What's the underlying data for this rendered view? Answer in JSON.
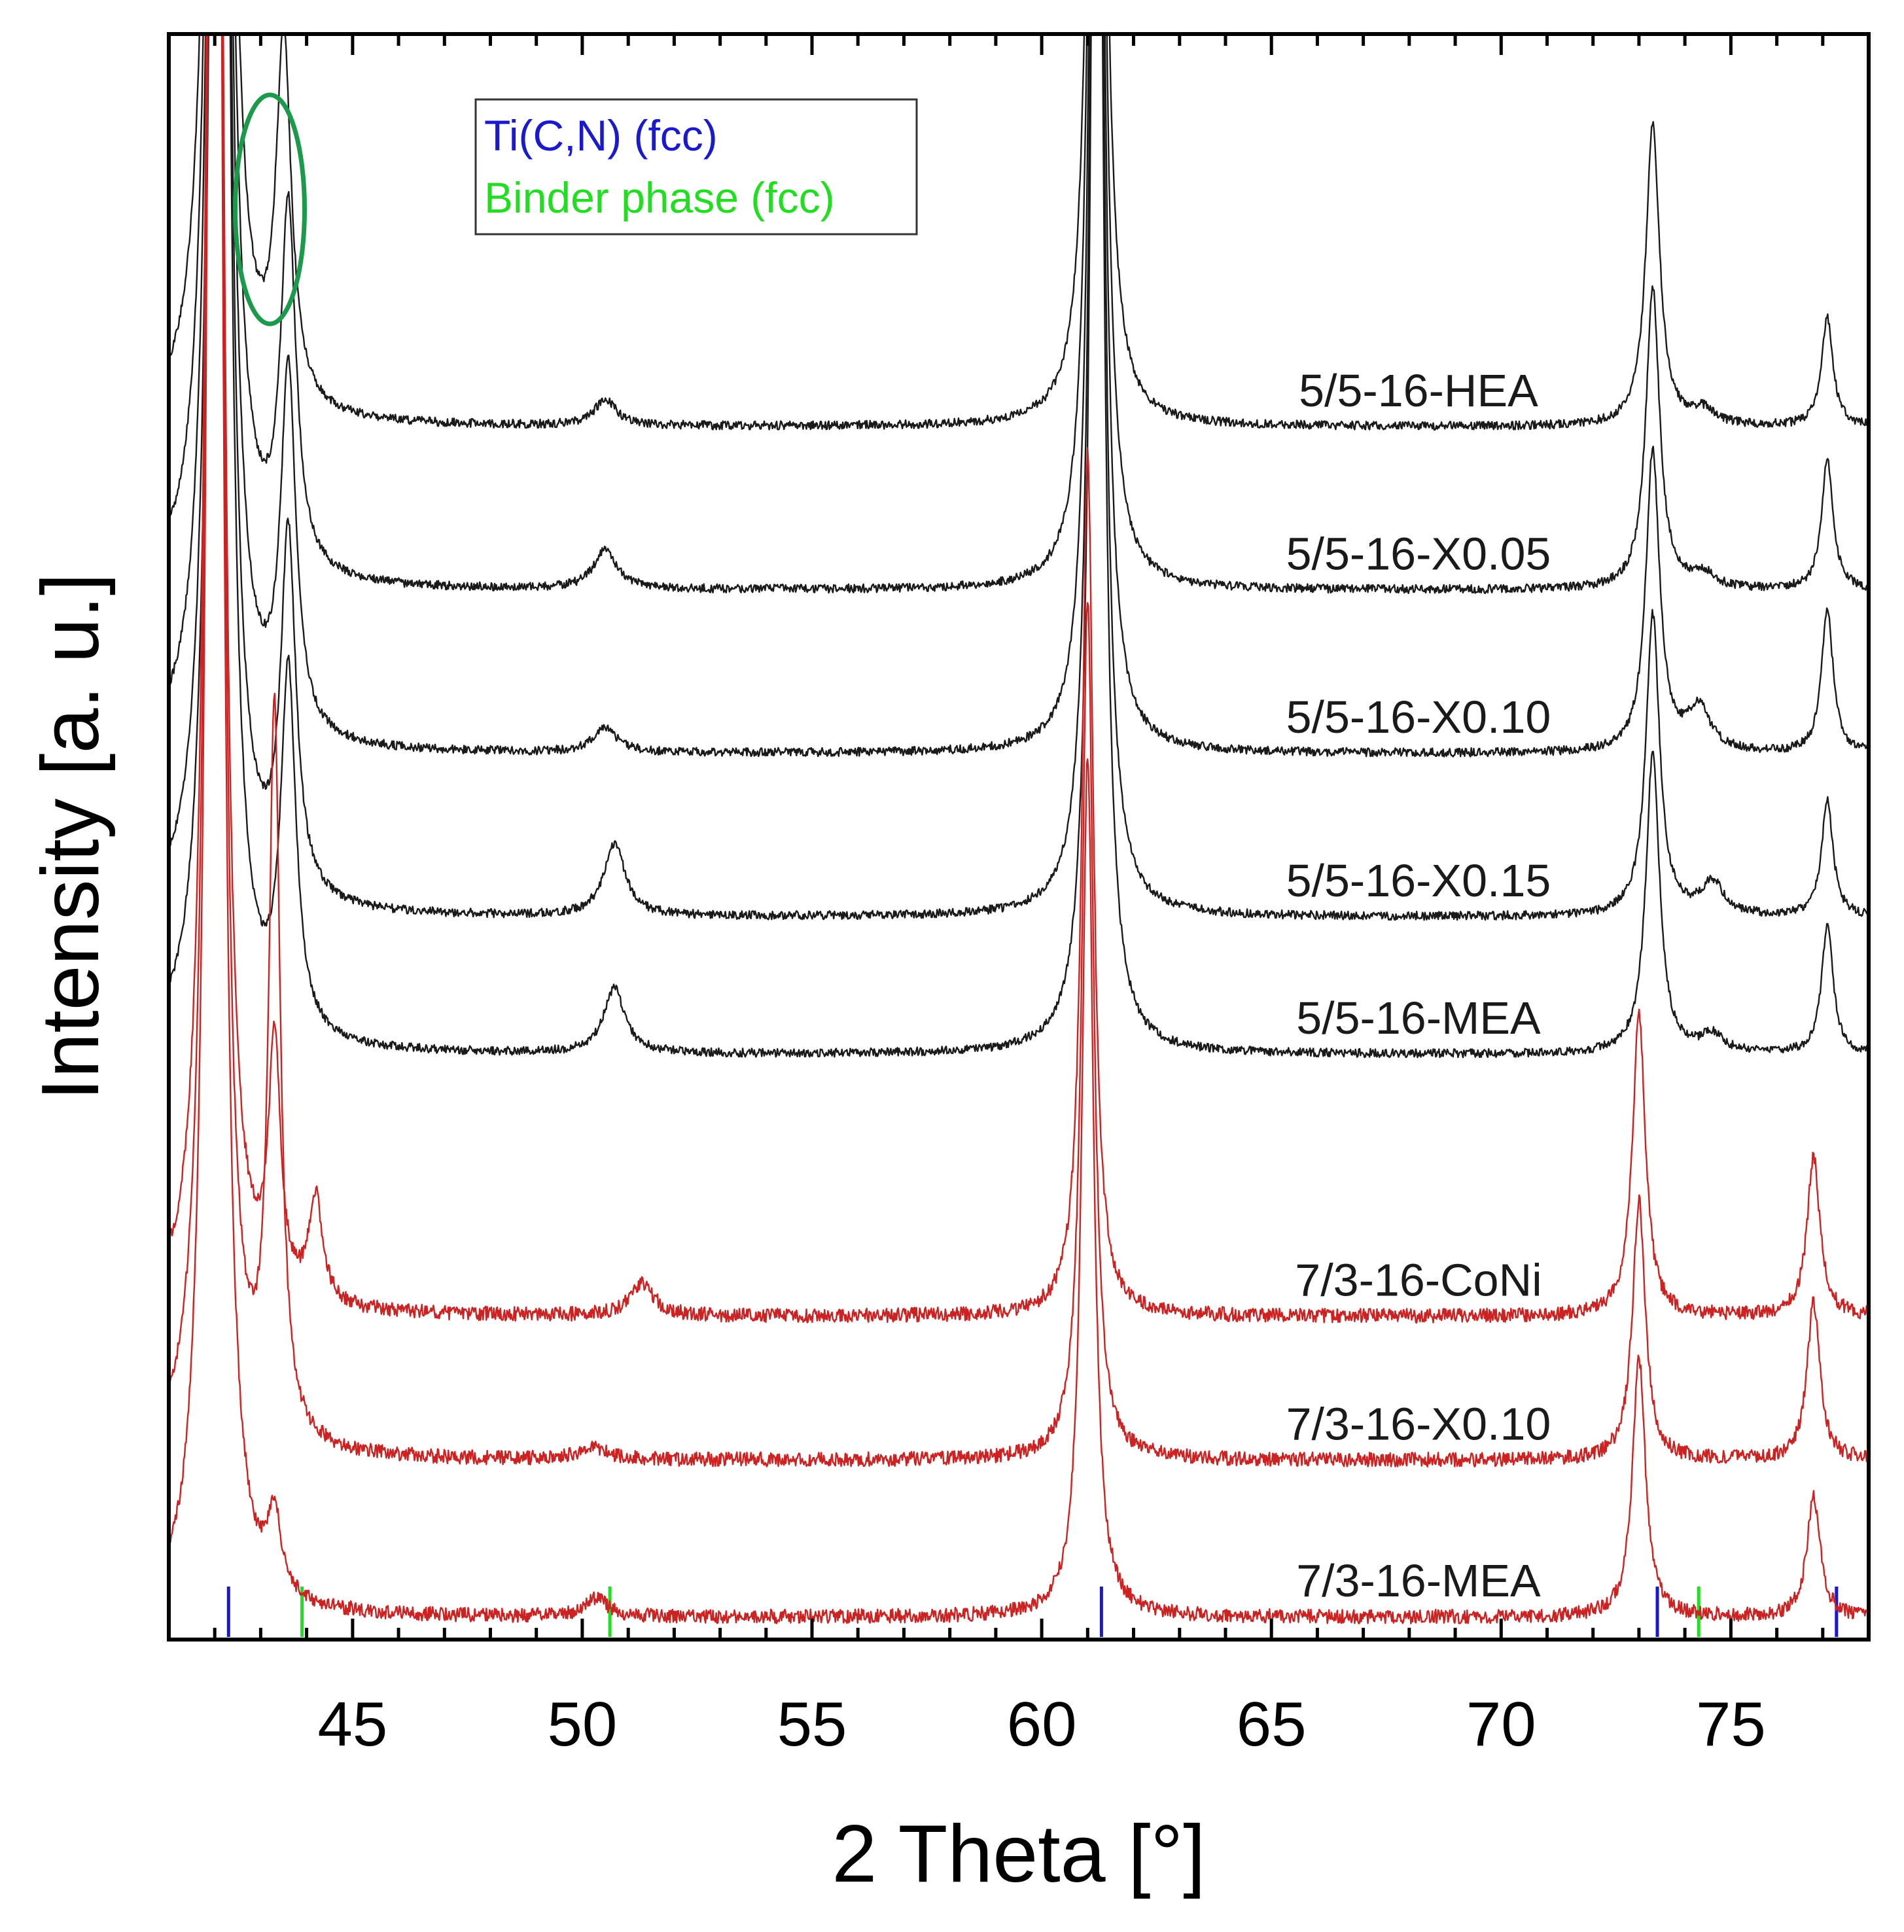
{
  "chart_data": {
    "type": "line",
    "title": "",
    "xlabel": "2 Theta [°]",
    "ylabel": "Intensity [a. u.]",
    "xlim": [
      41,
      78
    ],
    "xticks": [
      45,
      50,
      55,
      60,
      65,
      70,
      75
    ],
    "xtick_labels": [
      "45",
      "50",
      "55",
      "60",
      "65",
      "70",
      "75"
    ],
    "legend": {
      "position": "top-center",
      "entries": [
        {
          "label": "Ti(C,N) (fcc)",
          "color": "#1a1acc"
        },
        {
          "label": "Binder phase (fcc)",
          "color": "#22dd22"
        }
      ]
    },
    "reference_lines": [
      {
        "phase": "Ti(C,N) (fcc)",
        "color": "#1a1acc",
        "positions": [
          42.3,
          61.3,
          73.4,
          77.3
        ]
      },
      {
        "phase": "Binder phase (fcc)",
        "color": "#22dd22",
        "positions": [
          43.9,
          50.6,
          74.3
        ]
      }
    ],
    "annotation": {
      "type": "ellipse",
      "color": "#1a9a4a",
      "center_x": 43.2,
      "note": "binder phase peak region"
    },
    "series": [
      {
        "name": "5/5-16-HEA",
        "color": "#1a1a1a",
        "offset": 8.72,
        "noise": 0.06,
        "peaks": [
          [
            42.1,
            45,
            0.16
          ],
          [
            43.5,
            5.0,
            0.2
          ],
          [
            50.5,
            0.35,
            0.3
          ],
          [
            61.2,
            24,
            0.15
          ],
          [
            73.3,
            4.2,
            0.18
          ],
          [
            74.4,
            0.2,
            0.3
          ],
          [
            77.1,
            1.5,
            0.15
          ]
        ]
      },
      {
        "name": "5/5-16-X0.05",
        "color": "#1a1a1a",
        "offset": 6.45,
        "noise": 0.06,
        "peaks": [
          [
            42.1,
            45,
            0.16
          ],
          [
            43.6,
            5.0,
            0.2
          ],
          [
            50.5,
            0.55,
            0.3
          ],
          [
            61.2,
            24,
            0.15
          ],
          [
            73.3,
            4.2,
            0.18
          ],
          [
            74.4,
            0.2,
            0.3
          ],
          [
            77.1,
            1.8,
            0.15
          ]
        ]
      },
      {
        "name": "5/5-16-X0.10",
        "color": "#1a1a1a",
        "offset": 4.18,
        "noise": 0.06,
        "peaks": [
          [
            42.1,
            45,
            0.16
          ],
          [
            43.6,
            5.0,
            0.2
          ],
          [
            50.5,
            0.35,
            0.3
          ],
          [
            61.2,
            24,
            0.15
          ],
          [
            73.3,
            4.2,
            0.18
          ],
          [
            74.3,
            0.6,
            0.3
          ],
          [
            77.1,
            2.0,
            0.15
          ]
        ]
      },
      {
        "name": "5/5-16-X0.15",
        "color": "#1a1a1a",
        "offset": 1.91,
        "noise": 0.06,
        "peaks": [
          [
            42.1,
            45,
            0.16
          ],
          [
            43.6,
            5.0,
            0.2
          ],
          [
            50.7,
            1.0,
            0.28
          ],
          [
            61.2,
            24,
            0.15
          ],
          [
            73.3,
            4.2,
            0.18
          ],
          [
            74.6,
            0.45,
            0.3
          ],
          [
            77.1,
            1.6,
            0.15
          ]
        ]
      },
      {
        "name": "5/5-16-MEA",
        "color": "#1a1a1a",
        "offset": 0.0,
        "noise": 0.06,
        "peaks": [
          [
            42.1,
            45,
            0.16
          ],
          [
            43.6,
            5.0,
            0.2
          ],
          [
            50.7,
            0.9,
            0.28
          ],
          [
            61.2,
            24,
            0.15
          ],
          [
            73.3,
            4.2,
            0.18
          ],
          [
            74.6,
            0.25,
            0.3
          ],
          [
            77.1,
            1.8,
            0.15
          ]
        ]
      },
      {
        "name": "7/3-16-CoNi",
        "color": "#cc2222",
        "offset": -3.64,
        "noise": 0.1,
        "peaks": [
          [
            42.0,
            45,
            0.15
          ],
          [
            43.3,
            3.5,
            0.15
          ],
          [
            44.2,
            1.45,
            0.18
          ],
          [
            51.3,
            0.45,
            0.3
          ],
          [
            61.0,
            12,
            0.15
          ],
          [
            73.0,
            4.2,
            0.17
          ],
          [
            76.8,
            2.2,
            0.17
          ]
        ]
      },
      {
        "name": "7/3-16-X0.10",
        "color": "#cc2222",
        "offset": -5.64,
        "noise": 0.1,
        "peaks": [
          [
            42.0,
            45,
            0.15
          ],
          [
            43.3,
            10,
            0.15
          ],
          [
            50.2,
            0.2,
            0.3
          ],
          [
            61.0,
            12,
            0.15
          ],
          [
            73.0,
            3.6,
            0.17
          ],
          [
            76.8,
            2.2,
            0.17
          ]
        ]
      },
      {
        "name": "7/3-16-MEA",
        "color": "#cc2222",
        "offset": -7.82,
        "noise": 0.1,
        "peaks": [
          [
            42.0,
            45,
            0.15
          ],
          [
            43.3,
            1.1,
            0.17
          ],
          [
            50.3,
            0.25,
            0.3
          ],
          [
            61.0,
            12,
            0.15
          ],
          [
            73.0,
            3.6,
            0.17
          ],
          [
            76.8,
            1.7,
            0.17
          ]
        ]
      }
    ]
  }
}
